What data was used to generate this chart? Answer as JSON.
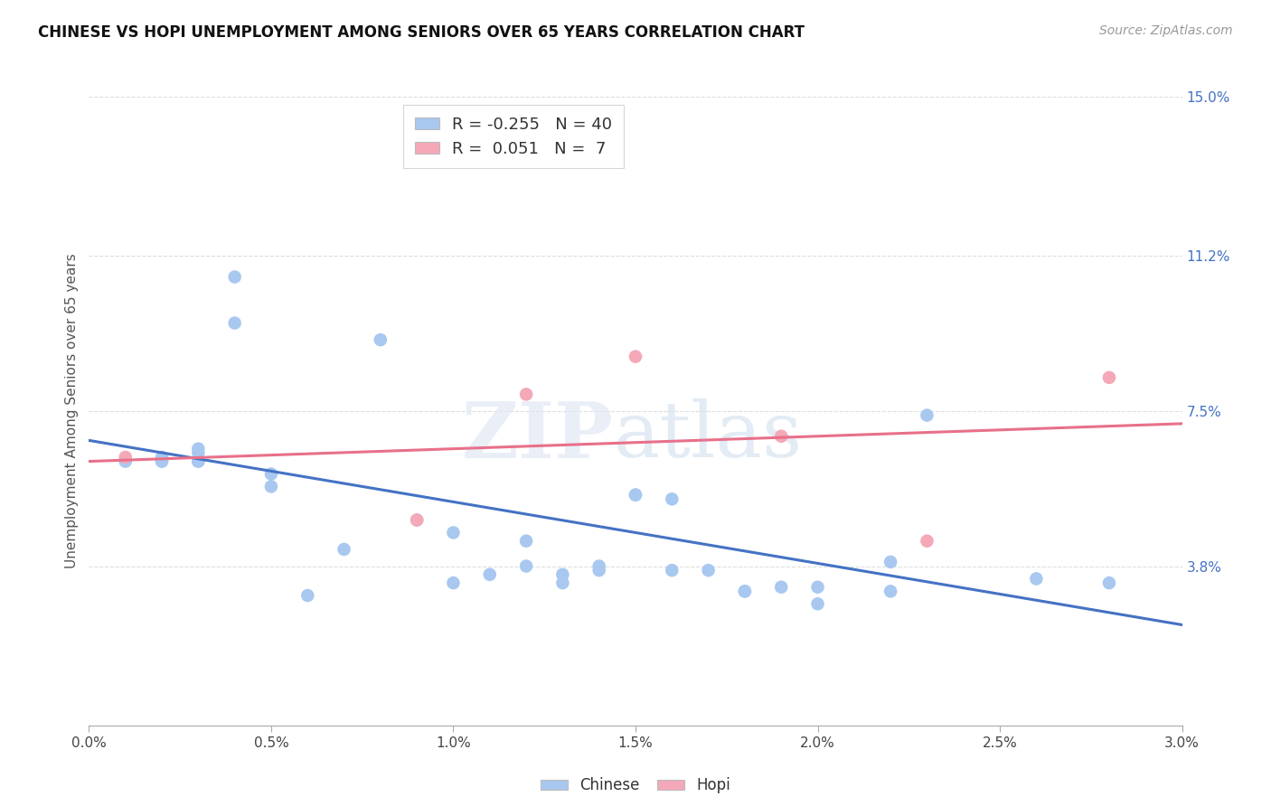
{
  "title": "CHINESE VS HOPI UNEMPLOYMENT AMONG SENIORS OVER 65 YEARS CORRELATION CHART",
  "source": "Source: ZipAtlas.com",
  "ylabel": "Unemployment Among Seniors over 65 years",
  "xlim": [
    0.0,
    0.03
  ],
  "ylim": [
    0.0,
    0.15
  ],
  "xtick_labels": [
    "0.0%",
    "0.5%",
    "1.0%",
    "1.5%",
    "2.0%",
    "2.5%",
    "3.0%"
  ],
  "xtick_values": [
    0.0,
    0.005,
    0.01,
    0.015,
    0.02,
    0.025,
    0.03
  ],
  "right_ytick_labels": [
    "15.0%",
    "11.2%",
    "7.5%",
    "3.8%"
  ],
  "right_ytick_values": [
    0.15,
    0.112,
    0.075,
    0.038
  ],
  "chinese_color": "#A8C8F0",
  "hopi_color": "#F4A8B8",
  "chinese_line_color": "#4472C4",
  "hopi_line_color": "#E8708A",
  "legend_chinese_R": "-0.255",
  "legend_chinese_N": "40",
  "legend_hopi_R": "0.051",
  "legend_hopi_N": "7",
  "chinese_x": [
    0.001,
    0.002,
    0.002,
    0.002,
    0.003,
    0.003,
    0.003,
    0.003,
    0.004,
    0.004,
    0.005,
    0.005,
    0.006,
    0.007,
    0.008,
    0.009,
    0.01,
    0.01,
    0.011,
    0.012,
    0.012,
    0.013,
    0.013,
    0.014,
    0.014,
    0.015,
    0.015,
    0.016,
    0.016,
    0.017,
    0.018,
    0.018,
    0.019,
    0.02,
    0.02,
    0.022,
    0.022,
    0.023,
    0.026,
    0.028
  ],
  "chinese_y": [
    0.063,
    0.063,
    0.063,
    0.064,
    0.066,
    0.065,
    0.063,
    0.063,
    0.107,
    0.096,
    0.06,
    0.057,
    0.031,
    0.042,
    0.092,
    0.049,
    0.046,
    0.034,
    0.036,
    0.038,
    0.044,
    0.036,
    0.034,
    0.038,
    0.037,
    0.055,
    0.055,
    0.054,
    0.037,
    0.037,
    0.032,
    0.032,
    0.033,
    0.029,
    0.033,
    0.039,
    0.032,
    0.074,
    0.035,
    0.034
  ],
  "hopi_x": [
    0.001,
    0.009,
    0.012,
    0.015,
    0.019,
    0.023,
    0.028
  ],
  "hopi_y": [
    0.064,
    0.049,
    0.079,
    0.088,
    0.069,
    0.044,
    0.083
  ],
  "chinese_trend_x0": 0.0,
  "chinese_trend_x1": 0.03,
  "chinese_trend_y0": 0.068,
  "chinese_trend_y1": 0.024,
  "hopi_trend_x0": 0.0,
  "hopi_trend_x1": 0.03,
  "hopi_trend_y0": 0.063,
  "hopi_trend_y1": 0.072,
  "background_color": "#FFFFFF",
  "grid_color": "#DDDDDD",
  "grid_yticks": [
    0.0,
    0.038,
    0.075,
    0.112,
    0.15
  ]
}
